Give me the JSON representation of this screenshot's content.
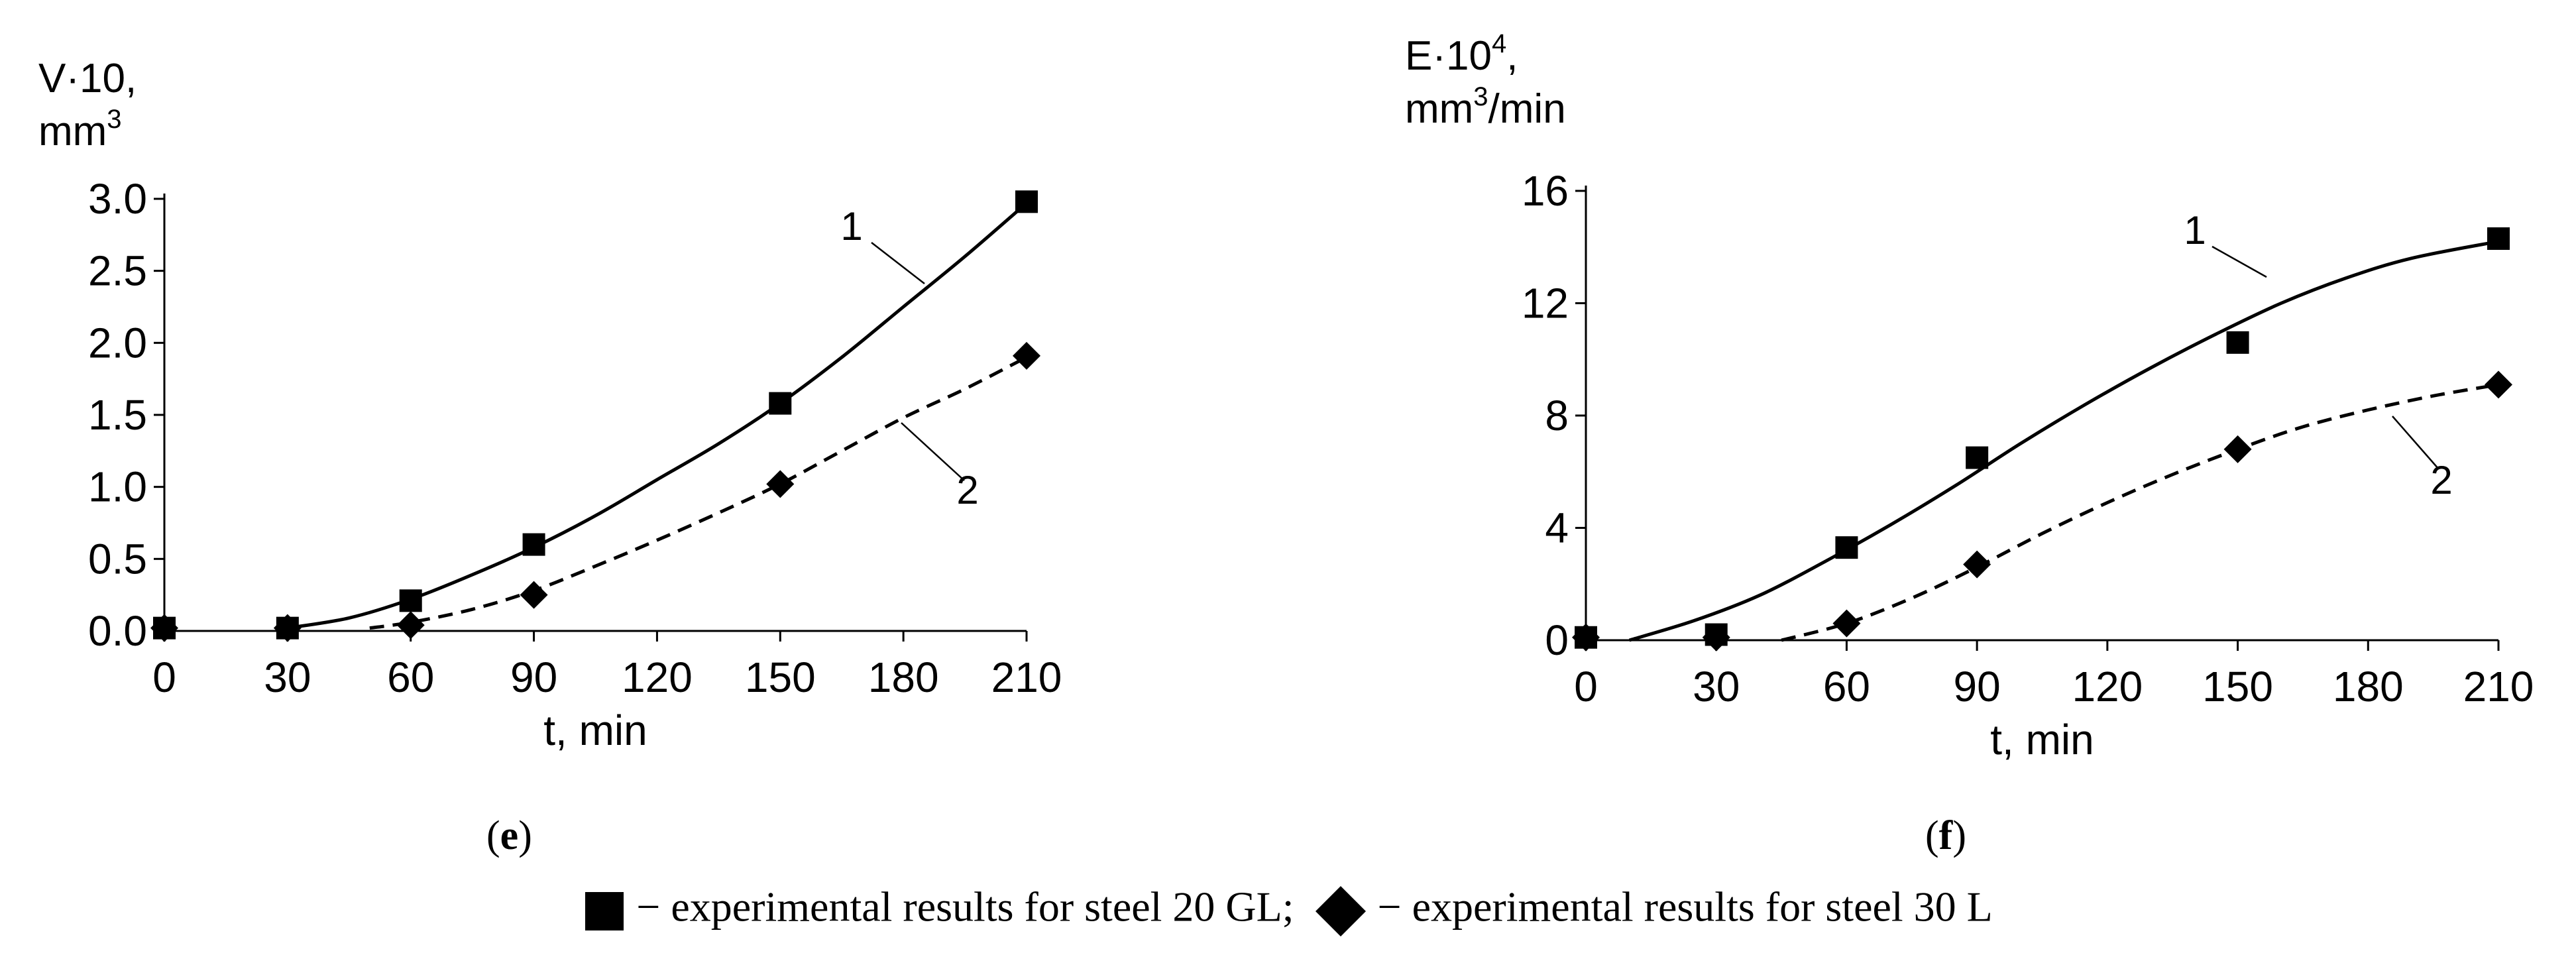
{
  "chart_data": [
    {
      "id": "e",
      "type": "line",
      "panel_label": "e",
      "ylabel_line1": "V·10,",
      "ylabel_line2_base": "mm",
      "ylabel_line2_sup": "3",
      "xlabel": "t, min",
      "xlim": [
        0,
        210
      ],
      "ylim": [
        0,
        3.0
      ],
      "xticks": [
        0,
        30,
        60,
        90,
        120,
        150,
        180,
        210
      ],
      "yticks": [
        0.0,
        0.5,
        1.0,
        1.5,
        2.0,
        2.5,
        3.0
      ],
      "ytick_decimals": 1,
      "grid": false,
      "series": [
        {
          "name": "steel 20 GL",
          "curve_label": "1",
          "marker": "square",
          "line_style": "solid",
          "x": [
            0,
            30,
            60,
            90,
            150,
            210
          ],
          "values": [
            0.02,
            0.02,
            0.21,
            0.6,
            1.58,
            2.98
          ],
          "fit_x": [
            30,
            45,
            60,
            75,
            90,
            105,
            120,
            135,
            150,
            165,
            180,
            195,
            210
          ],
          "fit_y": [
            0.02,
            0.09,
            0.22,
            0.39,
            0.58,
            0.8,
            1.05,
            1.3,
            1.58,
            1.9,
            2.25,
            2.6,
            2.97
          ]
        },
        {
          "name": "steel 30 L",
          "curve_label": "2",
          "marker": "diamond",
          "line_style": "dashed",
          "x": [
            0,
            30,
            60,
            90,
            150,
            210
          ],
          "values": [
            0.02,
            0.02,
            0.04,
            0.25,
            1.02,
            1.91
          ],
          "fit_x": [
            50,
            60,
            75,
            90,
            105,
            120,
            135,
            150,
            165,
            180,
            195,
            210
          ],
          "fit_y": [
            0.02,
            0.06,
            0.15,
            0.28,
            0.45,
            0.63,
            0.82,
            1.02,
            1.25,
            1.48,
            1.68,
            1.9
          ]
        }
      ]
    },
    {
      "id": "f",
      "type": "line",
      "panel_label": "f",
      "ylabel_line1_base": "E·10",
      "ylabel_line1_sup": "4",
      "ylabel_line1_tail": ",",
      "ylabel_line2_base": "mm",
      "ylabel_line2_sup": "3",
      "ylabel_line2_tail": "/min",
      "xlabel": "t, min",
      "xlim": [
        0,
        210
      ],
      "ylim": [
        0,
        16
      ],
      "xticks": [
        0,
        30,
        60,
        90,
        120,
        150,
        180,
        210
      ],
      "yticks": [
        0,
        4,
        8,
        12,
        16
      ],
      "ytick_decimals": 0,
      "grid": false,
      "series": [
        {
          "name": "steel 20 GL",
          "curve_label": "1",
          "marker": "square",
          "line_style": "solid",
          "x": [
            0,
            30,
            60,
            90,
            150,
            210
          ],
          "values": [
            0.1,
            0.2,
            3.3,
            6.5,
            10.6,
            14.3
          ],
          "fit_x": [
            10,
            25,
            40,
            55,
            70,
            85,
            100,
            115,
            130,
            145,
            160,
            175,
            190,
            210
          ],
          "fit_y": [
            0.0,
            0.7,
            1.6,
            2.8,
            4.1,
            5.5,
            7.0,
            8.4,
            9.7,
            10.9,
            12.0,
            12.9,
            13.6,
            14.2
          ]
        },
        {
          "name": "steel 30 L",
          "curve_label": "2",
          "marker": "diamond",
          "line_style": "dashed",
          "x": [
            0,
            30,
            60,
            90,
            150,
            210
          ],
          "values": [
            0.1,
            0.1,
            0.6,
            2.7,
            6.8,
            9.1
          ],
          "fit_x": [
            45,
            60,
            75,
            90,
            105,
            120,
            135,
            150,
            165,
            180,
            195,
            210
          ],
          "fit_y": [
            0.0,
            0.6,
            1.5,
            2.6,
            3.8,
            4.9,
            5.9,
            6.8,
            7.6,
            8.2,
            8.7,
            9.1
          ]
        }
      ]
    }
  ],
  "legend": {
    "item1_text": " − experimental results for steel 20 GL;",
    "item2_text": " − experimental results for steel 30 L"
  }
}
